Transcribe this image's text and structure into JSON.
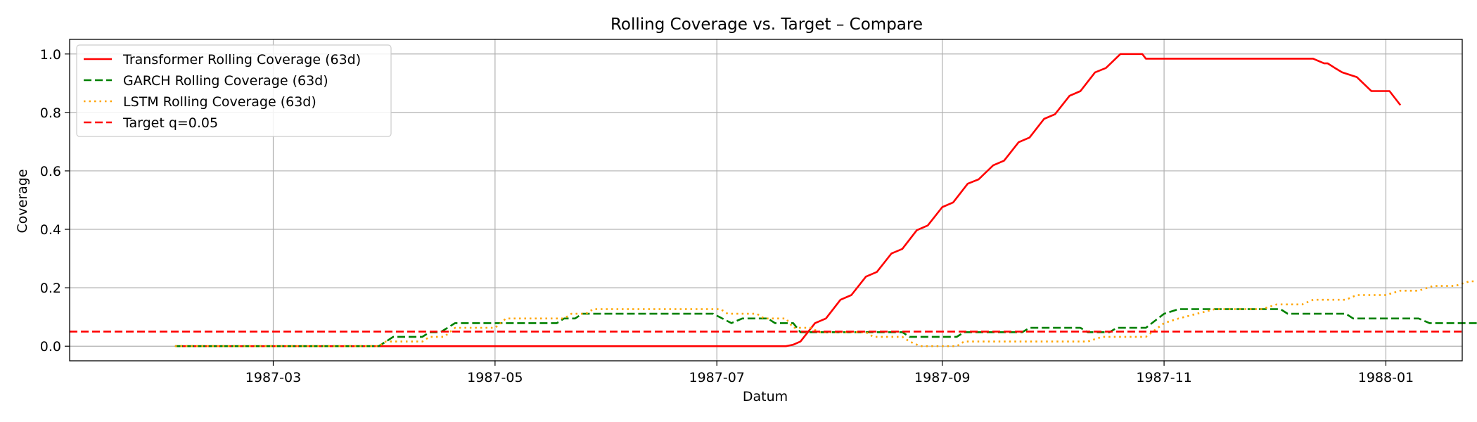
{
  "chart_data": {
    "type": "line",
    "title": "Rolling Coverage vs. Target – Compare",
    "xlabel": "Datum",
    "ylabel": "Coverage",
    "x_range": [
      "1987-01-04",
      "1988-01-22"
    ],
    "ylim": [
      -0.05,
      1.05
    ],
    "x_ticks": [
      "1987-03",
      "1987-05",
      "1987-07",
      "1987-09",
      "1987-11",
      "1988-01"
    ],
    "y_ticks": [
      "0.0",
      "0.2",
      "0.4",
      "0.6",
      "0.8",
      "1.0"
    ],
    "grid": true,
    "legend_position": "top-left",
    "series": [
      {
        "name": "Transformer Rolling Coverage (63d)",
        "color": "#ff0000",
        "style": "solid",
        "points": [
          [
            "1987-02-02",
            0.0
          ],
          [
            "1987-07-20",
            0.0
          ],
          [
            "1987-07-22",
            0.005
          ],
          [
            "1987-07-24",
            0.016
          ],
          [
            "1987-07-28",
            0.079
          ],
          [
            "1987-07-31",
            0.095
          ],
          [
            "1987-08-04",
            0.159
          ],
          [
            "1987-08-07",
            0.175
          ],
          [
            "1987-08-11",
            0.238
          ],
          [
            "1987-08-14",
            0.254
          ],
          [
            "1987-08-18",
            0.317
          ],
          [
            "1987-08-21",
            0.333
          ],
          [
            "1987-08-25",
            0.397
          ],
          [
            "1987-08-28",
            0.413
          ],
          [
            "1987-09-01",
            0.476
          ],
          [
            "1987-09-04",
            0.492
          ],
          [
            "1987-09-08",
            0.556
          ],
          [
            "1987-09-11",
            0.571
          ],
          [
            "1987-09-15",
            0.619
          ],
          [
            "1987-09-18",
            0.635
          ],
          [
            "1987-09-22",
            0.698
          ],
          [
            "1987-09-25",
            0.714
          ],
          [
            "1987-09-29",
            0.778
          ],
          [
            "1987-10-02",
            0.794
          ],
          [
            "1987-10-06",
            0.857
          ],
          [
            "1987-10-09",
            0.873
          ],
          [
            "1987-10-13",
            0.937
          ],
          [
            "1987-10-16",
            0.952
          ],
          [
            "1987-10-20",
            1.0
          ],
          [
            "1987-10-26",
            1.0
          ],
          [
            "1987-10-27",
            0.984
          ],
          [
            "1987-12-12",
            0.984
          ],
          [
            "1987-12-15",
            0.968
          ],
          [
            "1987-12-16",
            0.968
          ],
          [
            "1987-12-18",
            0.952
          ],
          [
            "1987-12-20",
            0.937
          ],
          [
            "1987-12-24",
            0.921
          ],
          [
            "1987-12-28",
            0.873
          ],
          [
            "1988-01-02",
            0.873
          ],
          [
            "1988-01-05",
            0.825
          ]
        ]
      },
      {
        "name": "GARCH Rolling Coverage (63d)",
        "color": "#008000",
        "style": "dashed",
        "points": [
          [
            "1987-02-02",
            0.0
          ],
          [
            "1987-03-30",
            0.0
          ],
          [
            "1987-04-01",
            0.016
          ],
          [
            "1987-04-03",
            0.032
          ],
          [
            "1987-04-11",
            0.032
          ],
          [
            "1987-04-13",
            0.048
          ],
          [
            "1987-04-16",
            0.048
          ],
          [
            "1987-04-20",
            0.079
          ],
          [
            "1987-05-18",
            0.079
          ],
          [
            "1987-05-20",
            0.095
          ],
          [
            "1987-05-23",
            0.095
          ],
          [
            "1987-05-25",
            0.111
          ],
          [
            "1987-06-30",
            0.111
          ],
          [
            "1987-07-05",
            0.079
          ],
          [
            "1987-07-08",
            0.095
          ],
          [
            "1987-07-15",
            0.095
          ],
          [
            "1987-07-17",
            0.079
          ],
          [
            "1987-07-22",
            0.079
          ],
          [
            "1987-07-24",
            0.048
          ],
          [
            "1987-08-21",
            0.048
          ],
          [
            "1987-08-23",
            0.032
          ],
          [
            "1987-09-05",
            0.032
          ],
          [
            "1987-09-07",
            0.048
          ],
          [
            "1987-09-23",
            0.048
          ],
          [
            "1987-09-25",
            0.063
          ],
          [
            "1987-10-09",
            0.063
          ],
          [
            "1987-10-11",
            0.048
          ],
          [
            "1987-10-17",
            0.048
          ],
          [
            "1987-10-19",
            0.063
          ],
          [
            "1987-10-27",
            0.063
          ],
          [
            "1987-11-01",
            0.111
          ],
          [
            "1987-11-05",
            0.127
          ],
          [
            "1987-12-03",
            0.127
          ],
          [
            "1987-12-05",
            0.111
          ],
          [
            "1987-12-21",
            0.111
          ],
          [
            "1987-12-23",
            0.095
          ],
          [
            "1988-01-10",
            0.095
          ],
          [
            "1988-01-13",
            0.079
          ],
          [
            "1988-01-27",
            0.079
          ]
        ]
      },
      {
        "name": "LSTM Rolling Coverage (63d)",
        "color": "#ffa500",
        "style": "dotted",
        "points": [
          [
            "1987-02-02",
            0.0
          ],
          [
            "1987-03-30",
            0.0
          ],
          [
            "1987-04-01",
            0.016
          ],
          [
            "1987-04-11",
            0.016
          ],
          [
            "1987-04-13",
            0.032
          ],
          [
            "1987-04-17",
            0.032
          ],
          [
            "1987-04-20",
            0.063
          ],
          [
            "1987-05-01",
            0.063
          ],
          [
            "1987-05-04",
            0.095
          ],
          [
            "1987-05-20",
            0.095
          ],
          [
            "1987-05-22",
            0.111
          ],
          [
            "1987-05-26",
            0.111
          ],
          [
            "1987-05-28",
            0.127
          ],
          [
            "1987-07-02",
            0.127
          ],
          [
            "1987-07-04",
            0.111
          ],
          [
            "1987-07-12",
            0.111
          ],
          [
            "1987-07-14",
            0.095
          ],
          [
            "1987-07-20",
            0.095
          ],
          [
            "1987-07-22",
            0.063
          ],
          [
            "1987-07-27",
            0.063
          ],
          [
            "1987-07-29",
            0.048
          ],
          [
            "1987-08-11",
            0.048
          ],
          [
            "1987-08-13",
            0.032
          ],
          [
            "1987-08-21",
            0.032
          ],
          [
            "1987-08-23",
            0.016
          ],
          [
            "1987-08-26",
            0.0
          ],
          [
            "1987-09-05",
            0.0
          ],
          [
            "1987-09-07",
            0.016
          ],
          [
            "1987-10-11",
            0.016
          ],
          [
            "1987-10-15",
            0.032
          ],
          [
            "1987-10-27",
            0.032
          ],
          [
            "1987-11-01",
            0.079
          ],
          [
            "1987-11-05",
            0.095
          ],
          [
            "1987-11-10",
            0.111
          ],
          [
            "1987-11-15",
            0.127
          ],
          [
            "1987-11-28",
            0.127
          ],
          [
            "1987-12-02",
            0.143
          ],
          [
            "1987-12-09",
            0.143
          ],
          [
            "1987-12-12",
            0.159
          ],
          [
            "1987-12-21",
            0.159
          ],
          [
            "1987-12-24",
            0.175
          ],
          [
            "1988-01-01",
            0.175
          ],
          [
            "1988-01-05",
            0.19
          ],
          [
            "1988-01-10",
            0.19
          ],
          [
            "1988-01-14",
            0.206
          ],
          [
            "1988-01-20",
            0.206
          ],
          [
            "1988-01-24",
            0.222
          ],
          [
            "1988-01-27",
            0.222
          ]
        ]
      },
      {
        "name": "Target q=0.05",
        "color": "#ff0000",
        "style": "dashed",
        "axhline": 0.05
      }
    ]
  }
}
